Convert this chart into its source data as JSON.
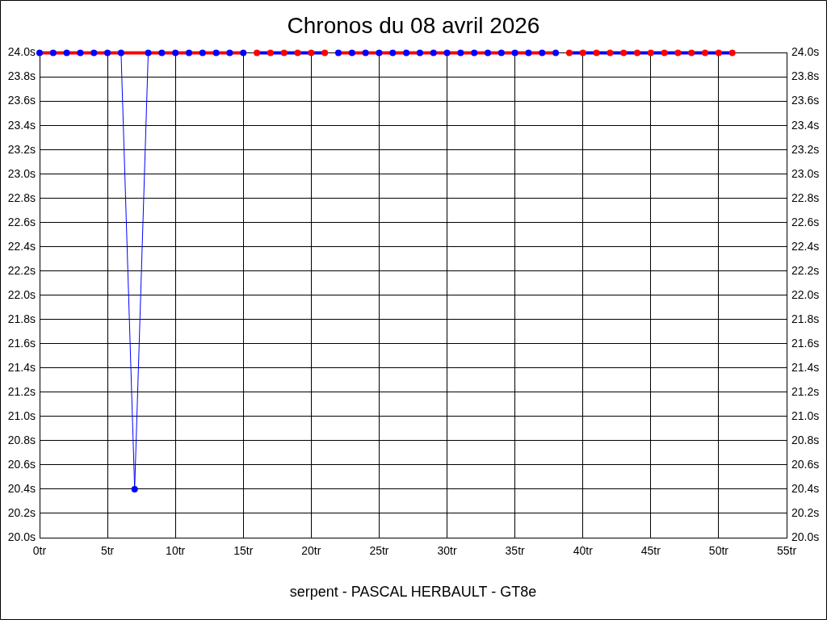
{
  "chart_data": {
    "type": "line",
    "title": "Chronos du 08 avril 2026",
    "xlabel": "serpent - PASCAL HERBAULT - GT8e",
    "xlim": [
      0,
      55
    ],
    "xticks": [
      {
        "value": 0,
        "label": "0tr"
      },
      {
        "value": 5,
        "label": "5tr"
      },
      {
        "value": 10,
        "label": "10tr"
      },
      {
        "value": 15,
        "label": "15tr"
      },
      {
        "value": 20,
        "label": "20tr"
      },
      {
        "value": 25,
        "label": "25tr"
      },
      {
        "value": 30,
        "label": "30tr"
      },
      {
        "value": 35,
        "label": "35tr"
      },
      {
        "value": 40,
        "label": "40tr"
      },
      {
        "value": 45,
        "label": "45tr"
      },
      {
        "value": 50,
        "label": "50tr"
      },
      {
        "value": 55,
        "label": "55tr"
      }
    ],
    "ylim": [
      20,
      24
    ],
    "yticks": [
      {
        "value": 20.0,
        "label": "20.0s"
      },
      {
        "value": 20.2,
        "label": "20.2s"
      },
      {
        "value": 20.4,
        "label": "20.4s"
      },
      {
        "value": 20.6,
        "label": "20.6s"
      },
      {
        "value": 20.8,
        "label": "20.8s"
      },
      {
        "value": 21.0,
        "label": "21.0s"
      },
      {
        "value": 21.2,
        "label": "21.2s"
      },
      {
        "value": 21.4,
        "label": "21.4s"
      },
      {
        "value": 21.6,
        "label": "21.6s"
      },
      {
        "value": 21.8,
        "label": "21.8s"
      },
      {
        "value": 22.0,
        "label": "22.0s"
      },
      {
        "value": 22.2,
        "label": "22.2s"
      },
      {
        "value": 22.4,
        "label": "22.4s"
      },
      {
        "value": 22.6,
        "label": "22.6s"
      },
      {
        "value": 22.8,
        "label": "22.8s"
      },
      {
        "value": 23.0,
        "label": "23.0s"
      },
      {
        "value": 23.2,
        "label": "23.2s"
      },
      {
        "value": 23.4,
        "label": "23.4s"
      },
      {
        "value": 23.6,
        "label": "23.6s"
      },
      {
        "value": 23.8,
        "label": "23.8s"
      },
      {
        "value": 24.0,
        "label": "24.0s"
      }
    ],
    "y2lim": [
      20,
      24
    ],
    "y2ticks": [
      {
        "value": 20.0,
        "label": "20.0s"
      },
      {
        "value": 20.2,
        "label": "20.2s"
      },
      {
        "value": 20.4,
        "label": "20.4s"
      },
      {
        "value": 20.6,
        "label": "20.6s"
      },
      {
        "value": 20.8,
        "label": "20.8s"
      },
      {
        "value": 21.0,
        "label": "21.0s"
      },
      {
        "value": 21.2,
        "label": "21.2s"
      },
      {
        "value": 21.4,
        "label": "21.4s"
      },
      {
        "value": 21.6,
        "label": "21.6s"
      },
      {
        "value": 21.8,
        "label": "21.8s"
      },
      {
        "value": 22.0,
        "label": "22.0s"
      },
      {
        "value": 22.2,
        "label": "22.2s"
      },
      {
        "value": 22.4,
        "label": "22.4s"
      },
      {
        "value": 22.6,
        "label": "22.6s"
      },
      {
        "value": 22.8,
        "label": "22.8s"
      },
      {
        "value": 23.0,
        "label": "23.0s"
      },
      {
        "value": 23.2,
        "label": "23.2s"
      },
      {
        "value": 23.4,
        "label": "23.4s"
      },
      {
        "value": 23.6,
        "label": "23.6s"
      },
      {
        "value": 23.8,
        "label": "23.8s"
      },
      {
        "value": 24.0,
        "label": "24.0s"
      }
    ],
    "grid": true,
    "series": [
      {
        "color": "#0000ff",
        "marker": "circle",
        "x": [
          0,
          1,
          2,
          3,
          4,
          5,
          6,
          7,
          8,
          9,
          10,
          11,
          12,
          13,
          14,
          15
        ],
        "values": [
          24.0,
          24.0,
          24.0,
          24.0,
          24.0,
          24.0,
          24.0,
          20.4,
          24.0,
          24.0,
          24.0,
          24.0,
          24.0,
          24.0,
          24.0,
          24.0
        ]
      },
      {
        "color": "#ff0000",
        "marker": "none",
        "x": [
          0,
          15
        ],
        "values": [
          24.0,
          24.0
        ]
      },
      {
        "type": "scatter",
        "color": "#ff0000",
        "marker": "circle",
        "x": [
          16,
          17,
          18,
          19,
          20,
          21
        ],
        "values": [
          24.0,
          24.0,
          24.0,
          24.0,
          24.0,
          24.0
        ]
      },
      {
        "color": "#0000ff",
        "marker": "none",
        "x": [
          16,
          21
        ],
        "values": [
          24.0,
          24.0
        ]
      },
      {
        "type": "scatter",
        "color": "#0000ff",
        "marker": "circle",
        "x": [
          22,
          23,
          24,
          25,
          26,
          27,
          28,
          29,
          30,
          31,
          32,
          33,
          34,
          35,
          36,
          37,
          38
        ],
        "values": [
          24.0,
          24.0,
          24.0,
          24.0,
          24.0,
          24.0,
          24.0,
          24.0,
          24.0,
          24.0,
          24.0,
          24.0,
          24.0,
          24.0,
          24.0,
          24.0,
          24.0
        ]
      },
      {
        "color": "#ff0000",
        "marker": "none",
        "x": [
          22,
          38
        ],
        "values": [
          24.0,
          24.0
        ]
      },
      {
        "type": "scatter",
        "color": "#ff0000",
        "marker": "circle",
        "x": [
          39,
          40,
          41,
          42,
          43,
          44,
          45,
          46,
          47,
          48,
          49,
          50,
          51
        ],
        "values": [
          24.0,
          24.0,
          24.0,
          24.0,
          24.0,
          24.0,
          24.0,
          24.0,
          24.0,
          24.0,
          24.0,
          24.0,
          24.0
        ]
      },
      {
        "color": "#0000ff",
        "marker": "none",
        "x": [
          39,
          51
        ],
        "values": [
          24.0,
          24.0
        ]
      }
    ]
  }
}
